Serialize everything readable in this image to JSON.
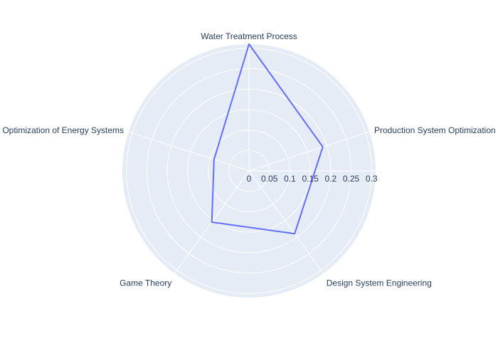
{
  "chart_data": {
    "type": "radar",
    "title": "",
    "categories": [
      "Water Treatment Process",
      "Production System Optimization i",
      "Design System Engineering",
      "Game Theory",
      "Optimization of Energy Systems"
    ],
    "series": [
      {
        "values": [
          0.31,
          0.19,
          0.19,
          0.155,
          0.09
        ]
      }
    ],
    "radial_axis": {
      "range": [
        0,
        0.31
      ],
      "tickvals": [
        0,
        0.05,
        0.1,
        0.15,
        0.2,
        0.25,
        0.3
      ],
      "ticktext": [
        "0",
        "0.05",
        "0.1",
        "0.15",
        "0.2",
        "0.25",
        "0.3"
      ],
      "angle_deg": 0
    },
    "angular_axis": {
      "rotation_deg": 90,
      "direction": "clockwise"
    },
    "grid": true,
    "legend": "none",
    "colors": {
      "polar_bg": "#e5ecf6",
      "grid": "#ffffff",
      "line": "#636efa",
      "text": "#2a3f5f"
    }
  }
}
